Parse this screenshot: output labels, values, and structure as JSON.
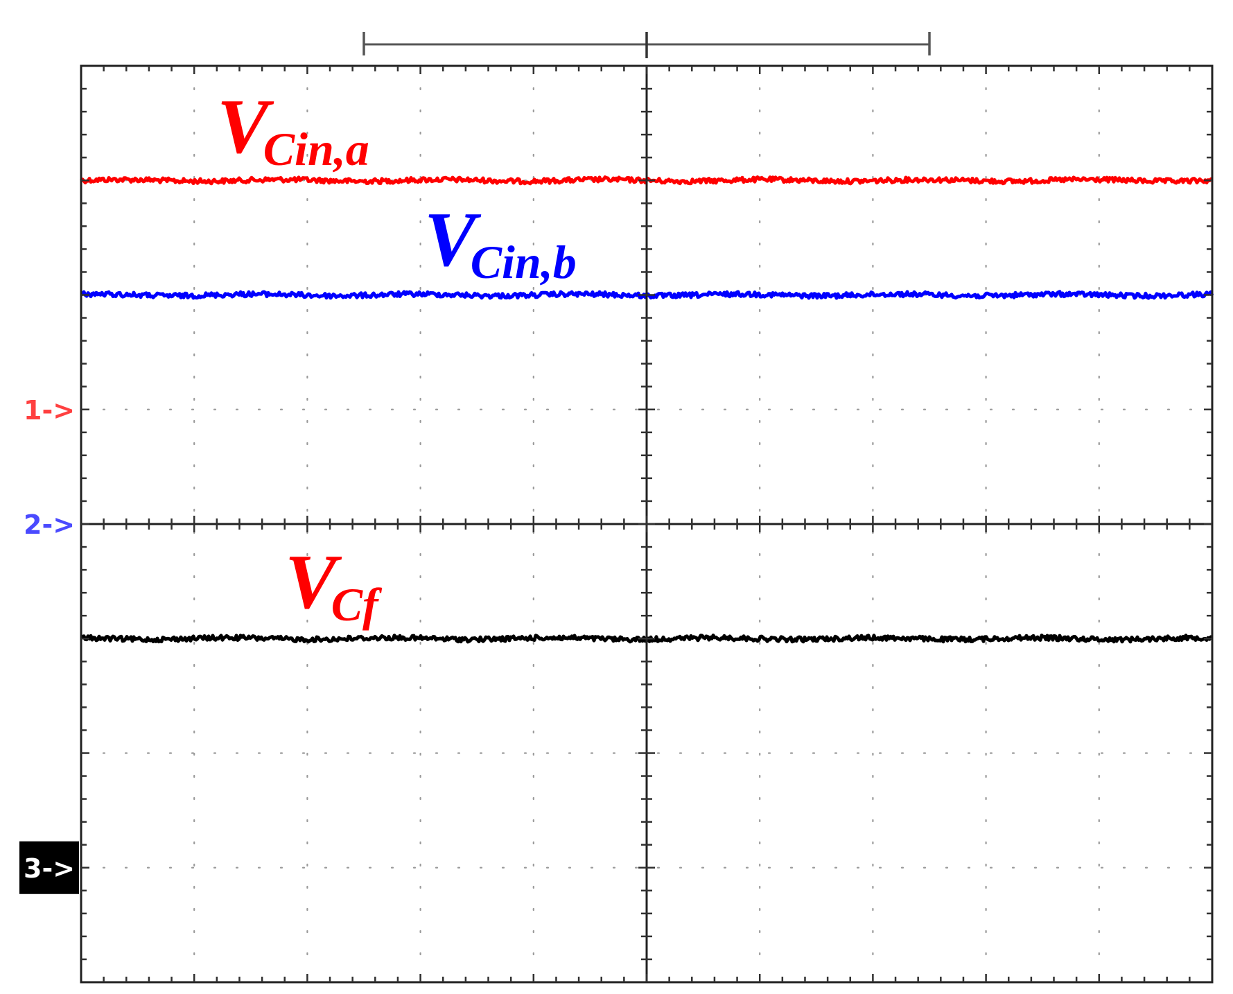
{
  "chart_data": {
    "type": "line",
    "title": "",
    "xlabel": "",
    "ylabel": "",
    "grid": true,
    "x_divisions": 10,
    "y_divisions": 8,
    "xlim": [
      0,
      10
    ],
    "ylim": [
      0,
      8
    ],
    "series": [
      {
        "label_main": "V",
        "label_sub": "Cin,a",
        "color": "#ff0000",
        "level": 7.0
      },
      {
        "label_main": "V",
        "label_sub": "Cin,b",
        "color": "#0000ff",
        "level": 6.0
      },
      {
        "label_main": "V",
        "label_sub": "Cf",
        "color": "#000000",
        "label_color": "#ff0000",
        "level": 3.0
      }
    ],
    "channel_markers": [
      {
        "text": "1->",
        "color": "#ff4040",
        "level": 5.0,
        "style": "plain"
      },
      {
        "text": "2->",
        "color": "#4a4aff",
        "level": 4.0,
        "style": "plain"
      },
      {
        "text": "3->",
        "color": "#ffffff",
        "background": "#000000",
        "level": 1.0,
        "style": "boxed"
      }
    ]
  }
}
